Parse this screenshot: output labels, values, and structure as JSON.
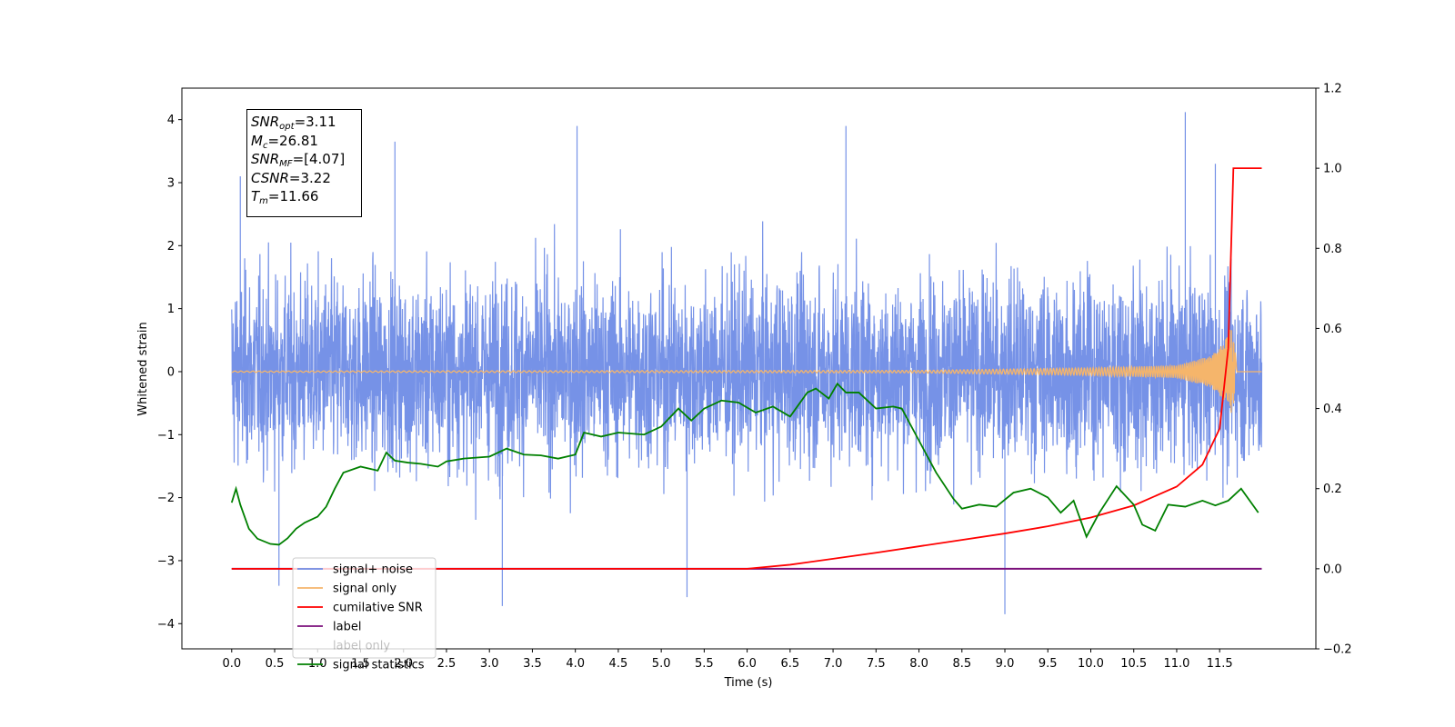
{
  "chart_data": {
    "type": "line",
    "xlabel": "Time (s)",
    "ylabel": "Whitened strain",
    "xlim": [
      -0.58,
      12.62
    ],
    "ylim": [
      -4.4,
      4.5
    ],
    "y2lim": [
      -0.2,
      1.2
    ],
    "x_ticks": [
      0.0,
      0.5,
      1.0,
      1.5,
      2.0,
      2.5,
      3.0,
      3.5,
      4.0,
      4.5,
      5.0,
      5.5,
      6.0,
      6.5,
      7.0,
      7.5,
      8.0,
      8.5,
      9.0,
      9.5,
      10.0,
      10.5,
      11.0,
      11.5
    ],
    "x_tick_labels": [
      "0.0",
      "0.5",
      "1.0",
      "1.5",
      "2.0",
      "2.5",
      "3.0",
      "3.5",
      "4.0",
      "4.5",
      "5.0",
      "5.5",
      "6.0",
      "6.5",
      "7.0",
      "7.5",
      "8.0",
      "8.5",
      "9.0",
      "9.5",
      "10.0",
      "10.5",
      "11.0",
      "11.5"
    ],
    "y_ticks": [
      -4,
      -3,
      -2,
      -1,
      0,
      1,
      2,
      3,
      4
    ],
    "y_tick_labels": [
      "−4",
      "−3",
      "−2",
      "−1",
      "0",
      "1",
      "2",
      "3",
      "4"
    ],
    "y2_ticks": [
      -0.2,
      0.0,
      0.2,
      0.4,
      0.6,
      0.8,
      1.0,
      1.2
    ],
    "y2_tick_labels": [
      "−0.2",
      "0.0",
      "0.2",
      "0.4",
      "0.6",
      "0.8",
      "1.0",
      "1.2"
    ],
    "legend_position": "lower-left",
    "grid": false,
    "series": [
      {
        "name": "signal+ noise",
        "color": "#6f8ce6",
        "axis": "left",
        "x_range": [
          0.0,
          11.99
        ],
        "envelope_max": 4.1,
        "envelope_min": -3.85,
        "peaks": [
          [
            0.1,
            3.1
          ],
          [
            1.9,
            3.65
          ],
          [
            4.02,
            3.9
          ],
          [
            7.15,
            3.9
          ],
          [
            11.1,
            4.12
          ],
          [
            11.45,
            3.3
          ],
          [
            9.0,
            -3.85
          ],
          [
            3.15,
            -3.72
          ],
          [
            5.3,
            -3.58
          ],
          [
            0.55,
            -3.4
          ]
        ]
      },
      {
        "name": "signal only",
        "color": "#f5b56b",
        "axis": "left",
        "x": [
          0.0,
          8.0,
          10.0,
          11.0,
          11.4,
          11.55,
          11.62,
          11.66,
          11.7,
          11.99
        ],
        "amplitude": [
          0.01,
          0.02,
          0.06,
          0.1,
          0.25,
          0.45,
          0.68,
          0.7,
          0.0,
          0.0
        ]
      },
      {
        "name": "cumilative SNR",
        "color": "#ff0000",
        "axis": "right",
        "x": [
          0.0,
          6.0,
          6.5,
          7.0,
          7.5,
          8.0,
          8.5,
          9.0,
          9.5,
          10.0,
          10.5,
          11.0,
          11.3,
          11.5,
          11.6,
          11.64,
          11.66,
          11.99
        ],
        "y": [
          0.0,
          0.0,
          0.01,
          0.025,
          0.04,
          0.056,
          0.072,
          0.088,
          0.106,
          0.128,
          0.158,
          0.205,
          0.26,
          0.35,
          0.55,
          0.85,
          1.0,
          1.0
        ]
      },
      {
        "name": "label",
        "color": "#7b0f7b",
        "axis": "right",
        "x": [
          0.0,
          11.99
        ],
        "y": [
          0.0,
          0.0
        ]
      },
      {
        "name": "label only",
        "color": "#8e7cc3",
        "axis": "right",
        "x": [],
        "y": []
      },
      {
        "name": "signal statistics",
        "color": "#008000",
        "axis": "right",
        "x": [
          0.0,
          0.05,
          0.1,
          0.2,
          0.3,
          0.45,
          0.55,
          0.65,
          0.75,
          0.85,
          1.0,
          1.1,
          1.2,
          1.3,
          1.5,
          1.7,
          1.8,
          1.9,
          2.05,
          2.2,
          2.4,
          2.5,
          2.7,
          3.0,
          3.2,
          3.4,
          3.6,
          3.8,
          4.0,
          4.1,
          4.3,
          4.5,
          4.8,
          5.0,
          5.2,
          5.35,
          5.5,
          5.7,
          5.9,
          6.1,
          6.3,
          6.5,
          6.7,
          6.8,
          6.95,
          7.05,
          7.15,
          7.3,
          7.5,
          7.7,
          7.8,
          7.95,
          8.2,
          8.4,
          8.5,
          8.7,
          8.9,
          9.1,
          9.3,
          9.5,
          9.65,
          9.8,
          9.95,
          10.1,
          10.3,
          10.5,
          10.6,
          10.75,
          10.9,
          11.1,
          11.3,
          11.45,
          11.6,
          11.75,
          11.95
        ],
        "y": [
          0.165,
          0.2,
          0.16,
          0.1,
          0.075,
          0.062,
          0.06,
          0.076,
          0.1,
          0.115,
          0.13,
          0.155,
          0.2,
          0.24,
          0.255,
          0.245,
          0.29,
          0.27,
          0.265,
          0.262,
          0.255,
          0.268,
          0.275,
          0.28,
          0.3,
          0.285,
          0.283,
          0.275,
          0.285,
          0.34,
          0.33,
          0.34,
          0.335,
          0.355,
          0.4,
          0.37,
          0.4,
          0.42,
          0.415,
          0.39,
          0.405,
          0.38,
          0.44,
          0.45,
          0.425,
          0.462,
          0.44,
          0.44,
          0.4,
          0.405,
          0.4,
          0.34,
          0.24,
          0.175,
          0.15,
          0.16,
          0.155,
          0.19,
          0.2,
          0.178,
          0.14,
          0.17,
          0.08,
          0.14,
          0.206,
          0.16,
          0.11,
          0.095,
          0.16,
          0.155,
          0.17,
          0.158,
          0.17,
          0.2,
          0.14
        ]
      }
    ]
  },
  "info_box": {
    "snr_opt_name": "SNR",
    "snr_opt_sub": "opt",
    "snr_opt_value": "=3.11",
    "mc_name": "M",
    "mc_sub": "c",
    "mc_value": "=26.81",
    "snr_mf_name": "SNR",
    "snr_mf_sub": "MF",
    "snr_mf_value": "=[4.07]",
    "csnr_name": "CSNR",
    "csnr_value": "=3.22",
    "tm_name": "T",
    "tm_sub": "m",
    "tm_value": "=11.66"
  }
}
